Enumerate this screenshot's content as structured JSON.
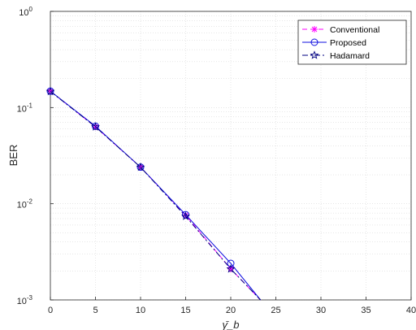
{
  "chart_data": {
    "type": "line",
    "title": "",
    "xlabel": "γ̄_b",
    "ylabel": "BER",
    "xlim": [
      0,
      40
    ],
    "ylim": [
      0.001,
      1
    ],
    "yscale": "log",
    "grid": true,
    "minor_grid": true,
    "legend_position": "top-right",
    "xticks": [
      0,
      5,
      10,
      15,
      20,
      25,
      30,
      35,
      40
    ],
    "yticks": [
      {
        "value": 1,
        "base": "10",
        "exp": "0"
      },
      {
        "value": 0.1,
        "base": "10",
        "exp": "-1"
      },
      {
        "value": 0.01,
        "base": "10",
        "exp": "-2"
      },
      {
        "value": 0.001,
        "base": "10",
        "exp": "-3"
      }
    ],
    "series": [
      {
        "name": "Conventional",
        "color": "#ff00ff",
        "dash": "6,4",
        "marker": "asterisk",
        "x": [
          0,
          5,
          10,
          15,
          20,
          23.3
        ],
        "y": [
          0.148,
          0.063,
          0.024,
          0.0076,
          0.0021,
          0.001
        ]
      },
      {
        "name": "Proposed",
        "color": "#1010e0",
        "dash": "",
        "marker": "circle",
        "x": [
          0,
          5,
          10,
          15,
          20,
          23.3
        ],
        "y": [
          0.148,
          0.064,
          0.024,
          0.0077,
          0.0024,
          0.001
        ]
      },
      {
        "name": "Hadamard",
        "color": "#000080",
        "dash": "7,3,2,3",
        "marker": "star",
        "x": [
          0,
          5,
          10,
          15,
          20,
          23.3
        ],
        "y": [
          0.147,
          0.063,
          0.024,
          0.0074,
          0.0021,
          0.001
        ]
      }
    ]
  }
}
